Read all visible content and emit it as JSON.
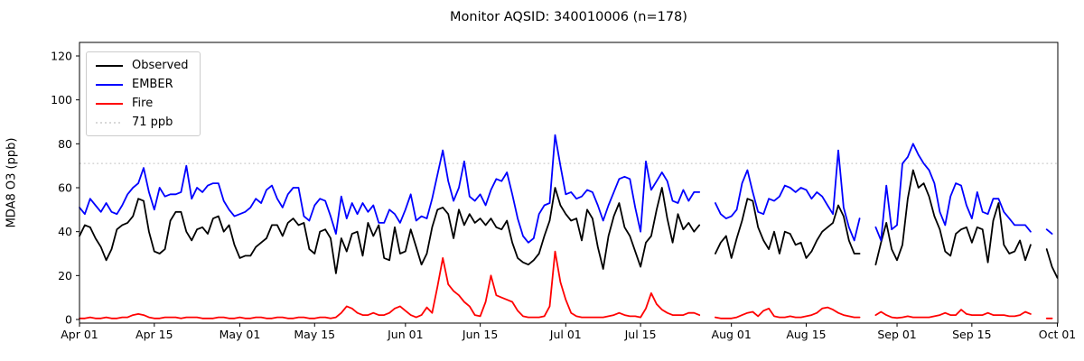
{
  "title": "Monitor AQSID: 340010006 (n=178)",
  "y_axis_label": "MDA8 O3 (ppb)",
  "legend": {
    "items": [
      {
        "label": "Observed",
        "color": "#000000",
        "style": "solid"
      },
      {
        "label": "EMBER",
        "color": "#0000ff",
        "style": "solid"
      },
      {
        "label": "Fire",
        "color": "#ff0000",
        "style": "solid"
      },
      {
        "label": "71 ppb",
        "color": "#d8d8d8",
        "style": "dotted"
      }
    ]
  },
  "chart_data": {
    "type": "line",
    "title": "Monitor AQSID: 340010006 (n=178)",
    "xlabel": "",
    "ylabel": "MDA8 O3 (ppb)",
    "ylim": [
      0,
      126
    ],
    "grid": false,
    "legend_position": "upper left",
    "x_cadence": "daily from Apr 01 to Oct 01 (index = day offset, null = missing day)",
    "x_tick_days": [
      0,
      14,
      30,
      44,
      61,
      75,
      91,
      105,
      122,
      136,
      153,
      167,
      183
    ],
    "x_tick_labels": [
      "Apr 01",
      "Apr 15",
      "May 01",
      "May 15",
      "Jun 01",
      "Jun 15",
      "Jul 01",
      "Jul 15",
      "Aug 01",
      "Aug 15",
      "Sep 01",
      "Sep 15",
      "Oct 01"
    ],
    "y_ticks": [
      0,
      20,
      40,
      60,
      80,
      100,
      120
    ],
    "threshold": {
      "value": 71,
      "label": "71 ppb",
      "color": "#d8d8d8",
      "style": "dotted"
    },
    "n_points": 178,
    "series": [
      {
        "name": "Observed",
        "color": "#000000",
        "values": [
          38,
          43,
          42,
          37,
          33,
          27,
          32,
          41,
          43,
          44,
          47,
          55,
          54,
          40,
          31,
          30,
          32,
          45,
          49,
          49,
          40,
          36,
          41,
          42,
          39,
          46,
          47,
          40,
          43,
          34,
          28,
          29,
          29,
          33,
          35,
          37,
          43,
          43,
          38,
          44,
          46,
          43,
          44,
          32,
          30,
          40,
          41,
          37,
          21,
          37,
          31,
          39,
          40,
          29,
          44,
          38,
          43,
          28,
          27,
          42,
          30,
          31,
          41,
          33,
          25,
          30,
          42,
          50,
          51,
          48,
          37,
          50,
          43,
          48,
          44,
          46,
          43,
          46,
          42,
          41,
          45,
          35,
          28,
          26,
          25,
          27,
          30,
          38,
          45,
          60,
          52,
          48,
          45,
          46,
          36,
          50,
          46,
          33,
          23,
          38,
          47,
          53,
          42,
          38,
          31,
          24,
          35,
          38,
          50,
          60,
          46,
          35,
          48,
          41,
          44,
          40,
          43,
          null,
          null,
          30,
          35,
          38,
          28,
          37,
          45,
          55,
          54,
          42,
          36,
          32,
          40,
          30,
          40,
          39,
          34,
          35,
          28,
          31,
          36,
          40,
          42,
          44,
          52,
          47,
          36,
          30,
          30,
          null,
          null,
          25,
          35,
          44,
          32,
          27,
          34,
          55,
          68,
          60,
          62,
          56,
          47,
          41,
          31,
          29,
          39,
          41,
          42,
          35,
          42,
          41,
          26,
          45,
          53,
          34,
          30,
          31,
          36,
          27,
          34,
          null,
          null,
          32,
          24,
          19
        ]
      },
      {
        "name": "EMBER",
        "color": "#0000ff",
        "values": [
          51,
          48,
          55,
          52,
          49,
          53,
          49,
          48,
          52,
          57,
          60,
          62,
          69,
          58,
          50,
          60,
          56,
          57,
          57,
          58,
          70,
          55,
          60,
          58,
          61,
          62,
          62,
          54,
          50,
          47,
          48,
          49,
          51,
          55,
          53,
          59,
          61,
          55,
          51,
          57,
          60,
          60,
          47,
          45,
          52,
          55,
          54,
          47,
          39,
          56,
          46,
          53,
          48,
          53,
          49,
          52,
          44,
          44,
          50,
          48,
          44,
          50,
          57,
          45,
          47,
          46,
          55,
          66,
          77,
          63,
          54,
          60,
          72,
          56,
          54,
          57,
          52,
          59,
          64,
          63,
          67,
          57,
          46,
          38,
          35,
          37,
          48,
          52,
          53,
          84,
          70,
          57,
          58,
          55,
          56,
          59,
          58,
          52,
          45,
          52,
          58,
          64,
          65,
          64,
          51,
          40,
          72,
          59,
          63,
          67,
          63,
          54,
          53,
          59,
          54,
          58,
          58,
          null,
          null,
          53,
          48,
          46,
          47,
          50,
          62,
          68,
          58,
          49,
          48,
          55,
          54,
          56,
          61,
          60,
          58,
          60,
          59,
          55,
          58,
          56,
          52,
          48,
          77,
          51,
          42,
          36,
          46,
          null,
          null,
          42,
          36,
          61,
          41,
          43,
          71,
          74,
          80,
          75,
          71,
          68,
          62,
          49,
          43,
          56,
          62,
          61,
          52,
          46,
          58,
          49,
          48,
          55,
          55,
          49,
          46,
          43,
          43,
          43,
          40,
          null,
          null,
          41,
          39,
          null
        ]
      },
      {
        "name": "Fire",
        "color": "#ff0000",
        "values": [
          0.5,
          0.5,
          1,
          0.5,
          0.5,
          1,
          0.5,
          0.5,
          1,
          1,
          2,
          2.5,
          2,
          1,
          0.5,
          0.5,
          1,
          1,
          1,
          0.5,
          1,
          1,
          1,
          0.5,
          0.5,
          0.5,
          1,
          1,
          0.5,
          0.5,
          1,
          0.5,
          0.5,
          1,
          1,
          0.5,
          0.5,
          1,
          1,
          0.5,
          0.5,
          1,
          1,
          0.5,
          0.5,
          1,
          1,
          0.5,
          1,
          3,
          6,
          5,
          3,
          2,
          2,
          3,
          2,
          2,
          3,
          5,
          6,
          4,
          2,
          1,
          2,
          5.5,
          3,
          15,
          28,
          16,
          13,
          11,
          8,
          6,
          2,
          1.5,
          8,
          20,
          11,
          10,
          9,
          8,
          4,
          1.5,
          1,
          1,
          1,
          1.5,
          6,
          31,
          17,
          9,
          3,
          1.5,
          1,
          1,
          1,
          1,
          1,
          1.5,
          2,
          3,
          2,
          1.5,
          1.5,
          1,
          5,
          12,
          7,
          4.5,
          3,
          2,
          2,
          2,
          3,
          3,
          2,
          null,
          null,
          1,
          0.5,
          0.5,
          0.5,
          1,
          2,
          3,
          3.5,
          1.5,
          4,
          5,
          1.5,
          1,
          1,
          1.5,
          1,
          1,
          1.5,
          2,
          3,
          5,
          5.5,
          4.5,
          3,
          2,
          1.5,
          1,
          1,
          null,
          null,
          2,
          3.5,
          2,
          1,
          0.7,
          1,
          1.5,
          1,
          1,
          1,
          1,
          1.5,
          2,
          3,
          2,
          2,
          4.5,
          2.5,
          2,
          2,
          2,
          3,
          2,
          2,
          2,
          1.5,
          1.5,
          2,
          3.5,
          2.5,
          null,
          null,
          0.5,
          0.5,
          null
        ]
      }
    ]
  }
}
